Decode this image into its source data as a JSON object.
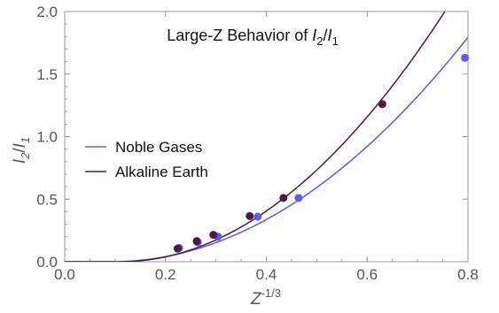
{
  "chart_data": {
    "type": "scatter",
    "title": "Large-Z Behavior of I2/I1",
    "title_parts": {
      "prefix": "Large-Z Behavior of ",
      "num": "I",
      "num_sub": "2",
      "slash": "/",
      "den": "I",
      "den_sub": "1"
    },
    "xlabel": {
      "base": "Z",
      "sup": "-1/3"
    },
    "ylabel": {
      "num": "I",
      "num_sub": "2",
      "slash": "/",
      "den": "I",
      "den_sub": "1"
    },
    "xlim": [
      0.0,
      0.8
    ],
    "ylim": [
      0.0,
      2.0
    ],
    "xticks": [
      "0.0",
      "0.2",
      "0.4",
      "0.6",
      "0.8"
    ],
    "yticks": [
      "0.0",
      "0.5",
      "1.0",
      "1.5",
      "2.0"
    ],
    "xtick_values": [
      0.0,
      0.2,
      0.4,
      0.6,
      0.8
    ],
    "ytick_values": [
      0.0,
      0.5,
      1.0,
      1.5,
      2.0
    ],
    "grid": false,
    "legend_position": "left",
    "series": [
      {
        "name": "Noble Gases",
        "color": "#5b5bf0",
        "x": [
          0.227,
          0.264,
          0.304,
          0.383,
          0.464,
          0.794
        ],
        "y": [
          0.11,
          0.155,
          0.2,
          0.36,
          0.51,
          1.63
        ],
        "fit": {
          "a": 3.6,
          "x0": 0.094
        }
      },
      {
        "name": "Alkaline Earth",
        "color": "#4a1b42",
        "x": [
          0.224,
          0.262,
          0.295,
          0.367,
          0.434,
          0.63
        ],
        "y": [
          0.105,
          0.165,
          0.215,
          0.365,
          0.51,
          1.26
        ],
        "fit": {
          "a": 4.82,
          "x0": 0.11
        }
      }
    ]
  }
}
